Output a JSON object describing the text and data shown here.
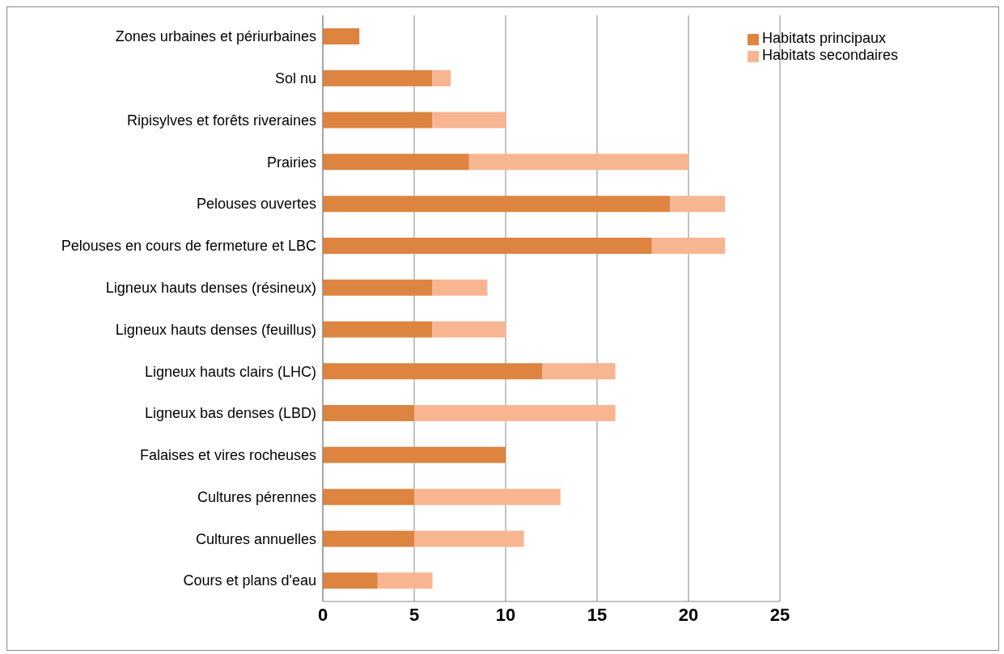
{
  "chart_data": {
    "type": "bar",
    "orientation": "horizontal",
    "stacked": true,
    "categories": [
      "Zones urbaines et périurbaines",
      "Sol nu",
      "Ripisylves et forêts riveraines",
      "Prairies",
      "Pelouses ouvertes",
      "Pelouses en cours de fermeture et LBC",
      "Ligneux hauts denses (résineux)",
      "Ligneux hauts denses (feuillus)",
      "Ligneux hauts clairs (LHC)",
      "Ligneux bas denses (LBD)",
      "Falaises et vires rocheuses",
      "Cultures pérennes",
      "Cultures annuelles",
      "Cours et plans d'eau"
    ],
    "series": [
      {
        "name": "Habitats principaux",
        "color": "#dd8441",
        "values": [
          2,
          6,
          6,
          8,
          19,
          18,
          6,
          6,
          12,
          5,
          10,
          5,
          5,
          3
        ]
      },
      {
        "name": "Habitats secondaires",
        "color": "#f8b591",
        "values": [
          0,
          1,
          4,
          12,
          3,
          4,
          3,
          4,
          4,
          11,
          0,
          8,
          6,
          3
        ]
      }
    ],
    "xlim": [
      0,
      25
    ],
    "xticks": [
      0,
      5,
      10,
      15,
      20,
      25
    ],
    "grid": "x",
    "legend": "top right"
  }
}
